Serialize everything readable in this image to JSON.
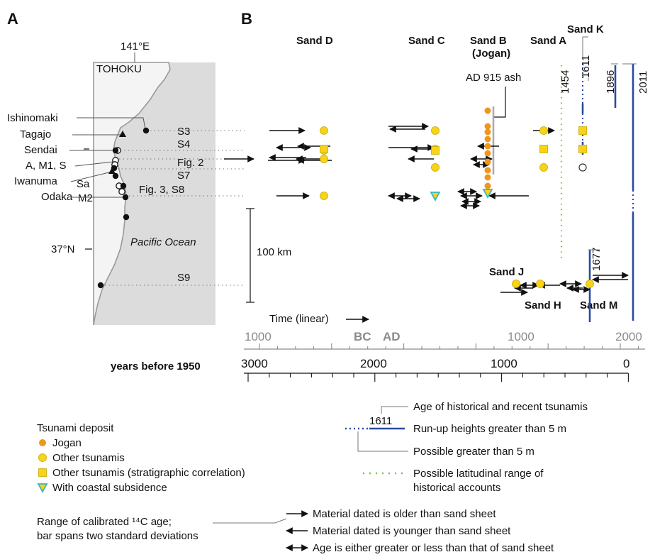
{
  "panel_a": {
    "label": "A",
    "meridian": "141°E",
    "region": "TOHOKU",
    "ocean": "Pacific Ocean",
    "latitude": "37°N",
    "places": [
      "Ishinomaki",
      "Tagajo",
      "Sendai",
      "A, M1, S",
      "Iwanuma",
      "Sa",
      "M2",
      "Odaka"
    ],
    "sites": [
      "S3",
      "S4",
      "Fig. 2",
      "S7",
      "Fig. 3, S8",
      "S9"
    ],
    "scale": "100 km",
    "colors": {
      "land": "#f2f2f2",
      "ocean": "#dcdcdc",
      "coast": "#999999"
    }
  },
  "panel_b": {
    "label": "B",
    "sand_labels": [
      "Sand D",
      "Sand C",
      "Sand B",
      "(Jogan)",
      "Sand A",
      "Sand K",
      "Sand J",
      "Sand H",
      "Sand M"
    ],
    "annotations": {
      "ash": "AD 915 ash"
    },
    "tsunami_years": [
      "1454",
      "1611",
      "1896",
      "2011",
      "1677"
    ],
    "time_caption": "Time (linear)",
    "axis_top_ticks": [
      "1000",
      "BC",
      "AD",
      "1000",
      "2000"
    ],
    "axis_bottom_ticks": [
      "3000",
      "2000",
      "1000",
      "0"
    ],
    "axis_bottom_title": "years before 1950",
    "colors": {
      "jogan": "#f0961e",
      "other": "#f7d417",
      "other_edge": "#c9a800",
      "subsidence_edge": "#3ab5c8",
      "runup": "#2b4aa0",
      "latitude_range": "#7dc23b",
      "axis_grey": "#8a8a8a"
    }
  },
  "legend": {
    "deposit_title": "Tsunami deposit",
    "deposit_items": [
      "Jogan",
      "Other tsunamis",
      "Other tsunamis (stratigraphic correlation)",
      "With coastal subsidence"
    ],
    "example_year": "1611",
    "age_label": "Age of historical and recent tsunamis",
    "runup_label": "Run-up heights greater than 5 m",
    "possible_label": "Possible greater than 5 m",
    "latitude_label_1": "Possible latitudinal range of",
    "latitude_label_2": "historical accounts",
    "range_label_1": "Range of calibrated ¹⁴C age;",
    "range_label_2": "bar spans two standard deviations",
    "arrow_older": "Material dated is older than sand sheet",
    "arrow_younger": "Material dated is younger than sand sheet",
    "arrow_either": "Age is either greater or less than that of sand sheet"
  }
}
